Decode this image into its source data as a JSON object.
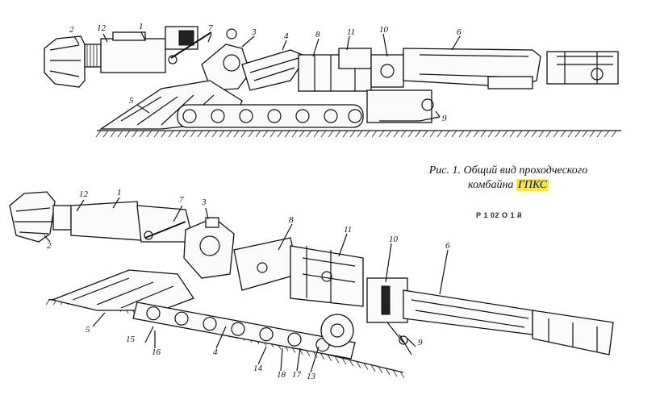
{
  "caption": {
    "line1": "Рис. 1. Общий вид проходческого",
    "line2_plain": "комбайна",
    "line2_highlight": "ГПКС"
  },
  "stray_text": "Р  1 02  О 1 й",
  "highlight_color": "#f6e64a",
  "top_view_labels": [
    "2",
    "12",
    "1",
    "7",
    "3",
    "4",
    "8",
    "11",
    "10",
    "6",
    "5",
    "9"
  ],
  "bottom_view_labels": [
    "12",
    "1",
    "7",
    "3",
    "2",
    "8",
    "11",
    "10",
    "6",
    "5",
    "15",
    "16",
    "4",
    "14",
    "18",
    "17",
    "13",
    "9"
  ]
}
